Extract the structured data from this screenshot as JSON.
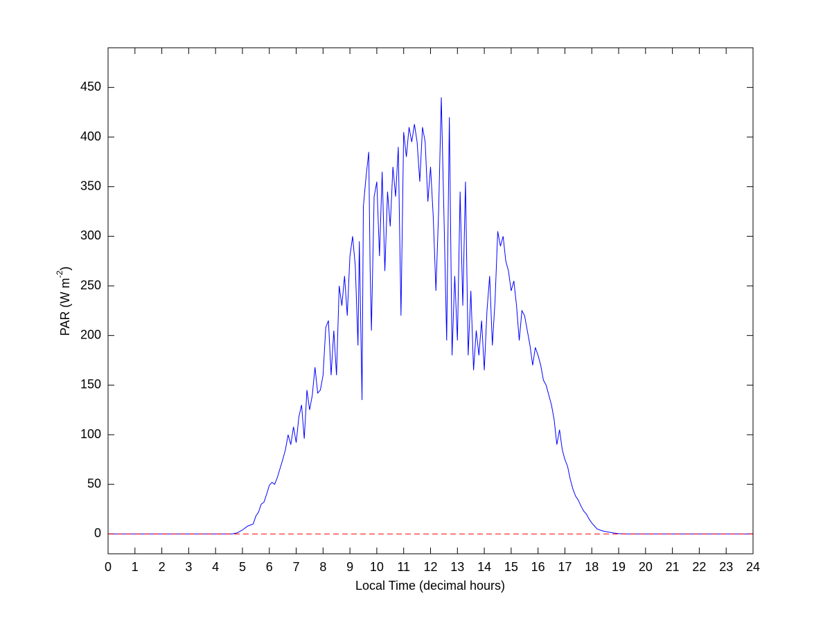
{
  "chart_data": {
    "type": "line",
    "xlabel": "Local Time (decimal hours)",
    "ylabel": [
      "PAR (W m",
      "-2",
      ")"
    ],
    "xlim": [
      0,
      24
    ],
    "xticks": [
      0,
      1,
      2,
      3,
      4,
      5,
      6,
      7,
      8,
      9,
      10,
      11,
      12,
      13,
      14,
      15,
      16,
      17,
      18,
      19,
      20,
      21,
      22,
      23,
      24
    ],
    "ylim": [
      -20,
      490
    ],
    "yticks": [
      0,
      50,
      100,
      150,
      200,
      250,
      300,
      350,
      400,
      450
    ],
    "series": [
      {
        "color": "#0000ff",
        "x": [
          0,
          4.6,
          4.8,
          5.0,
          5.2,
          5.4,
          5.5,
          5.6,
          5.7,
          5.8,
          5.9,
          6.0,
          6.1,
          6.2,
          6.3,
          6.4,
          6.5,
          6.6,
          6.7,
          6.8,
          6.9,
          7.0,
          7.1,
          7.2,
          7.3,
          7.4,
          7.5,
          7.6,
          7.7,
          7.8,
          7.9,
          8.0,
          8.1,
          8.2,
          8.3,
          8.4,
          8.5,
          8.6,
          8.7,
          8.8,
          8.9,
          9.0,
          9.1,
          9.2,
          9.3,
          9.35,
          9.45,
          9.5,
          9.6,
          9.7,
          9.75,
          9.8,
          9.9,
          10.0,
          10.1,
          10.2,
          10.3,
          10.4,
          10.5,
          10.6,
          10.7,
          10.8,
          10.9,
          11.0,
          11.1,
          11.2,
          11.3,
          11.4,
          11.5,
          11.6,
          11.7,
          11.8,
          11.9,
          12.0,
          12.1,
          12.2,
          12.3,
          12.4,
          12.5,
          12.6,
          12.7,
          12.8,
          12.9,
          13.0,
          13.1,
          13.2,
          13.3,
          13.4,
          13.5,
          13.6,
          13.7,
          13.8,
          13.9,
          14.0,
          14.1,
          14.2,
          14.3,
          14.4,
          14.5,
          14.6,
          14.7,
          14.8,
          14.9,
          15.0,
          15.1,
          15.2,
          15.3,
          15.4,
          15.5,
          15.6,
          15.7,
          15.8,
          15.9,
          16.0,
          16.1,
          16.2,
          16.3,
          16.4,
          16.5,
          16.6,
          16.7,
          16.8,
          16.9,
          17.0,
          17.1,
          17.2,
          17.3,
          17.4,
          17.5,
          17.6,
          17.7,
          17.8,
          17.9,
          18.0,
          18.1,
          18.2,
          18.4,
          18.6,
          18.8,
          19.0,
          19.3,
          24
        ],
        "values": [
          0,
          0,
          1,
          4,
          8,
          10,
          18,
          22,
          30,
          32,
          40,
          49,
          52,
          50,
          57,
          66,
          75,
          85,
          100,
          90,
          108,
          92,
          118,
          130,
          96,
          145,
          125,
          140,
          168,
          142,
          145,
          160,
          208,
          215,
          160,
          205,
          160,
          250,
          230,
          260,
          220,
          280,
          300,
          270,
          190,
          295,
          135,
          330,
          360,
          385,
          270,
          205,
          340,
          355,
          280,
          365,
          265,
          345,
          310,
          370,
          340,
          390,
          220,
          405,
          380,
          410,
          395,
          413,
          395,
          355,
          410,
          395,
          335,
          370,
          320,
          245,
          325,
          440,
          320,
          195,
          420,
          180,
          260,
          195,
          345,
          230,
          355,
          180,
          245,
          165,
          205,
          180,
          215,
          165,
          225,
          260,
          190,
          235,
          305,
          290,
          300,
          275,
          265,
          245,
          255,
          230,
          195,
          225,
          220,
          205,
          190,
          170,
          188,
          180,
          170,
          155,
          150,
          140,
          130,
          115,
          90,
          105,
          85,
          75,
          68,
          55,
          45,
          38,
          34,
          28,
          23,
          20,
          15,
          11,
          8,
          5,
          3,
          2,
          1,
          0.3,
          0,
          0
        ]
      },
      {
        "color": "#ff0000",
        "dash": true,
        "x": [
          0,
          24
        ],
        "values": [
          0,
          0
        ]
      }
    ]
  }
}
